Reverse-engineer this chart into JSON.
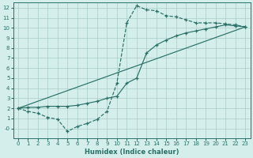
{
  "xlabel": "Humidex (Indice chaleur)",
  "bg_color": "#d4eeeb",
  "grid_color": "#aaccc8",
  "line_color": "#2a7068",
  "xlim": [
    -0.5,
    23.5
  ],
  "ylim": [
    -1.0,
    12.5
  ],
  "xticks": [
    0,
    1,
    2,
    3,
    4,
    5,
    6,
    7,
    8,
    9,
    10,
    11,
    12,
    13,
    14,
    15,
    16,
    17,
    18,
    19,
    20,
    21,
    22,
    23
  ],
  "yticks": [
    0,
    1,
    2,
    3,
    4,
    5,
    6,
    7,
    8,
    9,
    10,
    11,
    12
  ],
  "ytick_labels": [
    "-0",
    "1",
    "2",
    "3",
    "4",
    "5",
    "6",
    "7",
    "8",
    "9",
    "10",
    "11",
    "12"
  ],
  "line1_x": [
    0,
    1,
    2,
    3,
    4,
    5,
    6,
    7,
    8,
    9,
    10,
    11,
    12,
    13,
    14,
    15,
    16,
    17,
    18,
    19,
    20,
    21,
    22,
    23
  ],
  "line1_y": [
    2.0,
    1.7,
    1.5,
    1.1,
    0.9,
    -0.3,
    0.2,
    0.5,
    0.9,
    1.7,
    4.5,
    10.5,
    12.2,
    11.8,
    11.7,
    11.2,
    11.1,
    10.8,
    10.5,
    10.5,
    10.5,
    10.4,
    10.3,
    10.1
  ],
  "line2_x": [
    0,
    1,
    2,
    3,
    4,
    5,
    6,
    7,
    8,
    9,
    10,
    11,
    12,
    13,
    14,
    15,
    16,
    17,
    18,
    19,
    20,
    21,
    22,
    23
  ],
  "line2_y": [
    2.0,
    2.1,
    2.1,
    2.2,
    2.2,
    2.2,
    2.3,
    2.5,
    2.7,
    3.0,
    3.2,
    4.5,
    5.0,
    7.5,
    8.3,
    8.8,
    9.2,
    9.5,
    9.7,
    9.9,
    10.1,
    10.3,
    10.2,
    10.1
  ],
  "line3_x": [
    0,
    23
  ],
  "line3_y": [
    2.0,
    10.1
  ]
}
